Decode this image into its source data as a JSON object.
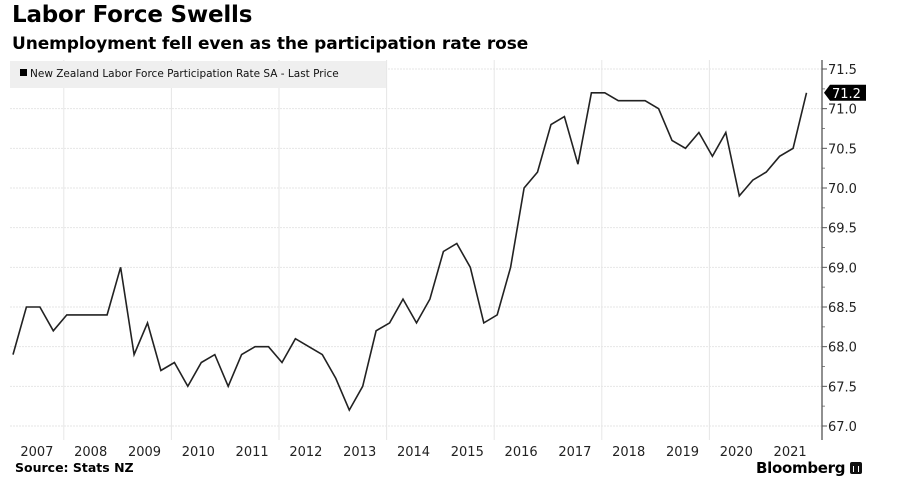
{
  "header": {
    "title": "Labor Force Swells",
    "subtitle": "Unemployment fell even as the participation rate rose"
  },
  "footer": {
    "source": "Source: Stats NZ",
    "brand": "Bloomberg",
    "brand_icon": "bloomberg-terminal-icon"
  },
  "chart_data": {
    "type": "line",
    "title": "Labor Force Swells",
    "subtitle": "Unemployment fell even as the participation rate rose",
    "xlabel": "",
    "ylabel": "",
    "frequency": "quarterly",
    "x_start": "2007 Q1",
    "x_ticks": [
      "2007",
      "2008",
      "2009",
      "2010",
      "2011",
      "2012",
      "2013",
      "2014",
      "2015",
      "2016",
      "2017",
      "2018",
      "2019",
      "2020",
      "2021"
    ],
    "vertical_gridlines_at_years": [
      2008,
      2010,
      2012,
      2014,
      2016,
      2018,
      2020
    ],
    "y_ticks": [
      "71.5",
      "71.0",
      "70.5",
      "70.0",
      "69.5",
      "69.0",
      "68.5",
      "68.0",
      "67.5",
      "67.0"
    ],
    "ylim": [
      67.0,
      71.5
    ],
    "y_axis_side": "right",
    "grid": true,
    "legend": {
      "position": "top-left",
      "entries": [
        {
          "label": "New Zealand Labor Force Participation Rate SA - Last Price",
          "color": "#000000"
        }
      ]
    },
    "last_value_label": "71.2",
    "series": [
      {
        "name": "New Zealand Labor Force Participation Rate SA - Last Price",
        "color": "#222222",
        "values": [
          67.9,
          68.5,
          68.5,
          68.2,
          68.4,
          68.4,
          68.4,
          68.4,
          69.0,
          67.9,
          68.3,
          67.7,
          67.8,
          67.5,
          67.8,
          67.9,
          67.5,
          67.9,
          68.0,
          68.0,
          67.8,
          68.1,
          68.0,
          67.9,
          67.6,
          67.2,
          67.5,
          68.2,
          68.3,
          68.6,
          68.3,
          68.6,
          69.2,
          69.3,
          69.0,
          68.3,
          68.4,
          69.0,
          70.0,
          70.2,
          70.8,
          70.9,
          70.3,
          71.2,
          71.2,
          71.1,
          71.1,
          71.1,
          71.0,
          70.6,
          70.5,
          70.7,
          70.4,
          70.7,
          69.9,
          70.1,
          70.2,
          70.4,
          70.5,
          71.2
        ]
      }
    ]
  }
}
